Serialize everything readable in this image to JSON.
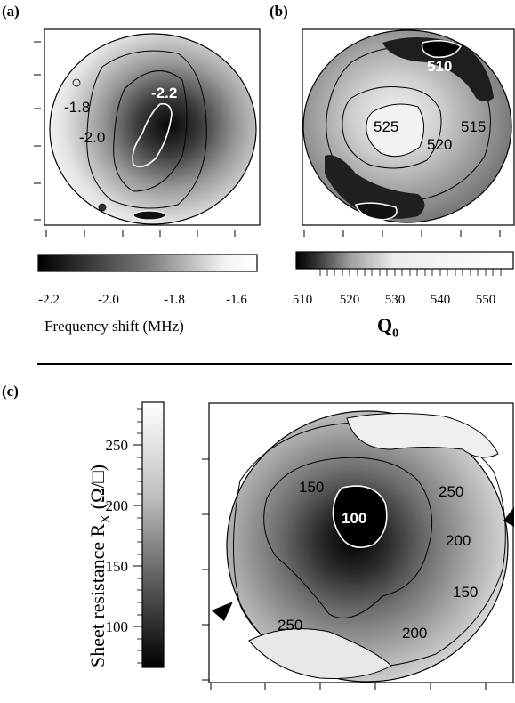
{
  "panels": {
    "a": {
      "label": "(a)"
    },
    "b": {
      "label": "(b)"
    },
    "c": {
      "label": "(c)"
    }
  },
  "panel_a": {
    "contour_labels": [
      "-1.8",
      "-2.0",
      "-2.2"
    ],
    "colorbar_ticks": [
      "-2.2",
      "-2.0",
      "-1.8",
      "-1.6"
    ],
    "axis_title": "Frequency shift (MHz)"
  },
  "panel_b": {
    "contour_labels": [
      "510",
      "525",
      "520",
      "515"
    ],
    "colorbar_ticks": [
      "510",
      "520",
      "530",
      "540",
      "550"
    ],
    "axis_title_main": "Q",
    "axis_title_sub": "0"
  },
  "panel_c": {
    "contour_labels": [
      "150",
      "100",
      "250",
      "200",
      "150",
      "250",
      "200"
    ],
    "colorbar_ticks": [
      "250",
      "200",
      "150",
      "100"
    ],
    "axis_title_main": "Sheet resistance R",
    "axis_title_sub": "X",
    "axis_title_unit": " (Ω/□)"
  },
  "chart_data": [
    {
      "type": "heatmap",
      "panel": "(a)",
      "xlabel": "Frequency shift (MHz)",
      "colorbar_range": [
        -2.3,
        -1.6
      ],
      "colorbar_ticks": [
        -2.2,
        -2.0,
        -1.8,
        -1.6
      ],
      "contour_levels": [
        -1.8,
        -2.0,
        -2.2
      ],
      "colormap": [
        "#000000",
        "#ffffff"
      ]
    },
    {
      "type": "heatmap",
      "panel": "(b)",
      "xlabel": "Q0",
      "colorbar_range": [
        508,
        555
      ],
      "colorbar_ticks": [
        510,
        520,
        530,
        540,
        550
      ],
      "contour_levels": [
        510,
        515,
        520,
        525
      ],
      "colormap": [
        "#000000",
        "#ffffff"
      ]
    },
    {
      "type": "heatmap",
      "panel": "(c)",
      "ylabel": "Sheet resistance RX (Ω/□)",
      "colorbar_range": [
        65,
        285
      ],
      "colorbar_ticks": [
        100,
        150,
        200,
        250
      ],
      "contour_levels": [
        100,
        150,
        200,
        250
      ],
      "colormap": [
        "#000000",
        "#ffffff"
      ]
    }
  ]
}
